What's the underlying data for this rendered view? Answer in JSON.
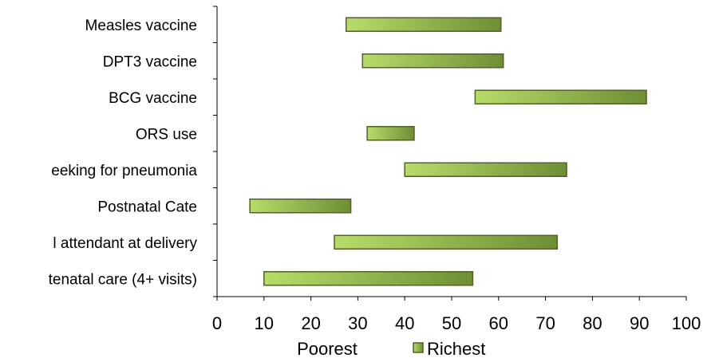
{
  "chart_data": {
    "type": "bar",
    "orientation": "horizontal",
    "categories": [
      "Measles vaccine",
      "DPT3 vaccine",
      "BCG vaccine",
      "ORS use",
      "eeking for pneumonia",
      "Postnatal Cate",
      "l attendant at delivery",
      "tenatal care (4+ visits)"
    ],
    "series": [
      {
        "name": "Poorest",
        "values": [
          27.5,
          31,
          55,
          32,
          40,
          7,
          25,
          10
        ]
      },
      {
        "name": "Richest",
        "values": [
          60.5,
          61,
          91.5,
          42,
          74.5,
          28.5,
          72.5,
          54.5
        ]
      }
    ],
    "xlim": [
      0,
      100
    ],
    "xticks": [
      0,
      10,
      20,
      30,
      40,
      50,
      60,
      70,
      80,
      90,
      100
    ],
    "grid": false,
    "legend_position": "bottom",
    "colors": {
      "bar_light": "#b8dc6a",
      "bar_dark": "#6e8e35",
      "bar_border": "#4f6228"
    }
  },
  "legend": {
    "poorest_label": "Poorest",
    "richest_label": "Richest"
  }
}
